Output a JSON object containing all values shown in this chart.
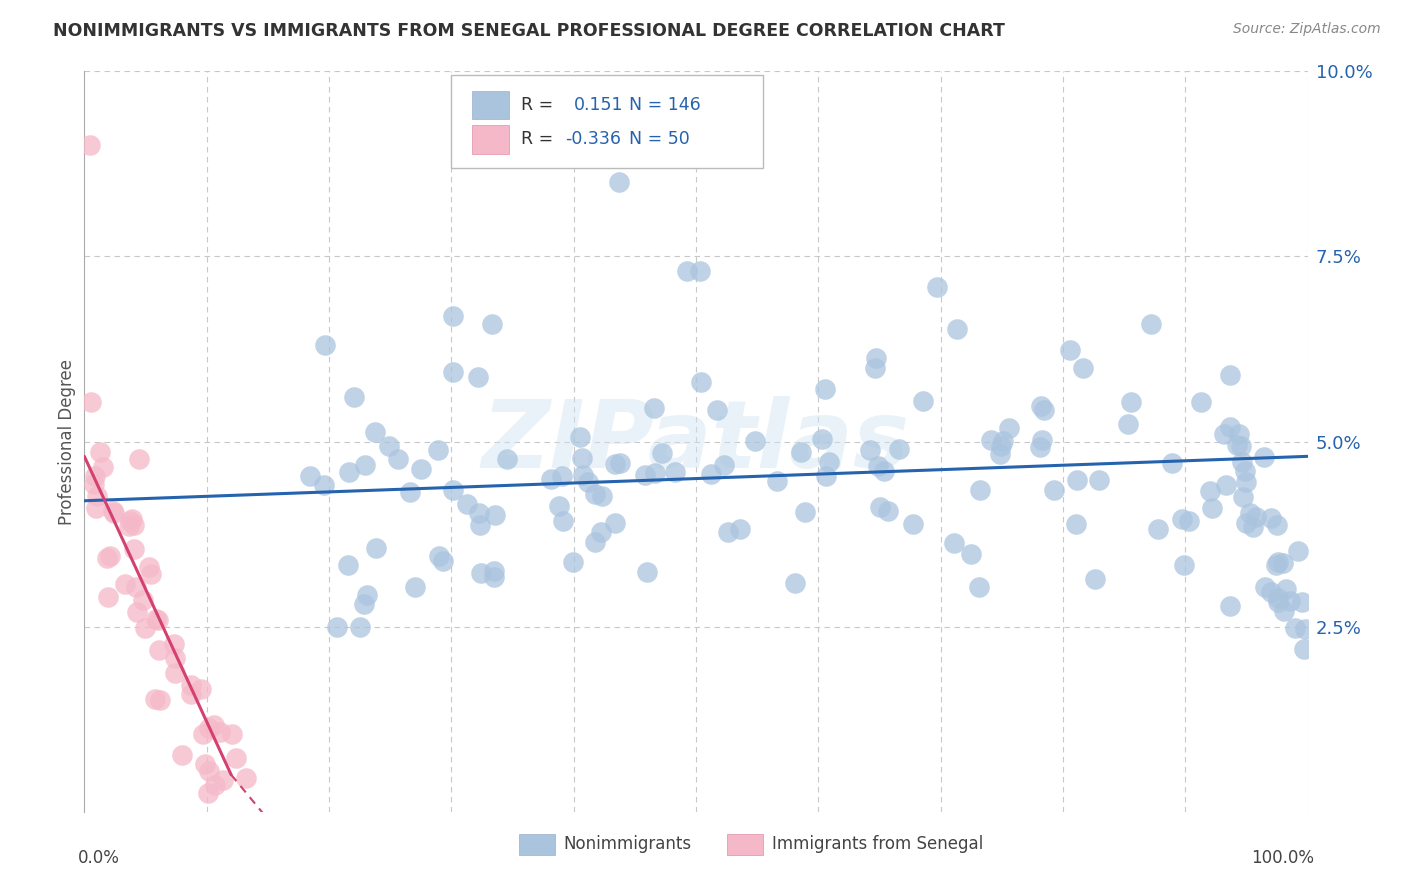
{
  "title": "NONIMMIGRANTS VS IMMIGRANTS FROM SENEGAL PROFESSIONAL DEGREE CORRELATION CHART",
  "source": "Source: ZipAtlas.com",
  "ylabel": "Professional Degree",
  "legend_blue_r": "0.151",
  "legend_blue_n": "146",
  "legend_pink_r": "-0.336",
  "legend_pink_n": "50",
  "blue_color": "#aac4de",
  "blue_line_color": "#2563ae",
  "pink_color": "#f5b8c8",
  "pink_line_color": "#d44070",
  "grid_color": "#c8c8c8",
  "background_color": "#ffffff",
  "xlim": [
    0.0,
    1.0
  ],
  "ylim": [
    0.0,
    0.1
  ],
  "watermark": "ZIPatlas",
  "legend_label_blue": "Nonimmigrants",
  "legend_label_pink": "Immigrants from Senegal"
}
